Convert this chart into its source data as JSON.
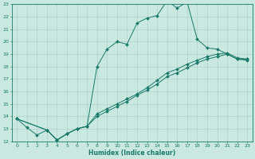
{
  "title": "",
  "xlabel": "Humidex (Indice chaleur)",
  "xlim": [
    -0.5,
    23.5
  ],
  "ylim": [
    12,
    23
  ],
  "yticks": [
    12,
    13,
    14,
    15,
    16,
    17,
    18,
    19,
    20,
    21,
    22,
    23
  ],
  "xticks": [
    0,
    1,
    2,
    3,
    4,
    5,
    6,
    7,
    8,
    9,
    10,
    11,
    12,
    13,
    14,
    15,
    16,
    17,
    18,
    19,
    20,
    21,
    22,
    23
  ],
  "bg_color": "#c8e8e0",
  "grid_color": "#b0d0c8",
  "line_color": "#1a7a6a",
  "line1": {
    "x": [
      0,
      1,
      2,
      3,
      4,
      5,
      6,
      7,
      8,
      9,
      10,
      11,
      12,
      13,
      14,
      15,
      16,
      17,
      18,
      19,
      20,
      21,
      22,
      23
    ],
    "y": [
      13.8,
      13.1,
      12.5,
      12.9,
      12.1,
      12.6,
      13.0,
      13.2,
      18.0,
      19.4,
      20.0,
      19.8,
      21.5,
      21.9,
      22.1,
      23.3,
      22.7,
      23.2,
      20.2,
      19.5,
      19.4,
      19.0,
      18.6,
      18.6
    ]
  },
  "line2": {
    "x": [
      0,
      3,
      4,
      5,
      6,
      7,
      8,
      9,
      10,
      11,
      12,
      13,
      14,
      15,
      16,
      17,
      18,
      19,
      20,
      21,
      22,
      23
    ],
    "y": [
      13.8,
      12.9,
      12.1,
      12.6,
      13.0,
      13.2,
      14.2,
      14.6,
      15.0,
      15.4,
      15.8,
      16.3,
      16.9,
      17.5,
      17.8,
      18.2,
      18.5,
      18.8,
      19.0,
      19.1,
      18.7,
      18.6
    ]
  },
  "line3": {
    "x": [
      0,
      3,
      4,
      5,
      6,
      7,
      8,
      9,
      10,
      11,
      12,
      13,
      14,
      15,
      16,
      17,
      18,
      19,
      20,
      21,
      22,
      23
    ],
    "y": [
      13.8,
      12.9,
      12.1,
      12.6,
      13.0,
      13.2,
      14.0,
      14.4,
      14.8,
      15.2,
      15.7,
      16.1,
      16.6,
      17.2,
      17.5,
      17.9,
      18.3,
      18.6,
      18.8,
      19.0,
      18.6,
      18.5
    ]
  }
}
